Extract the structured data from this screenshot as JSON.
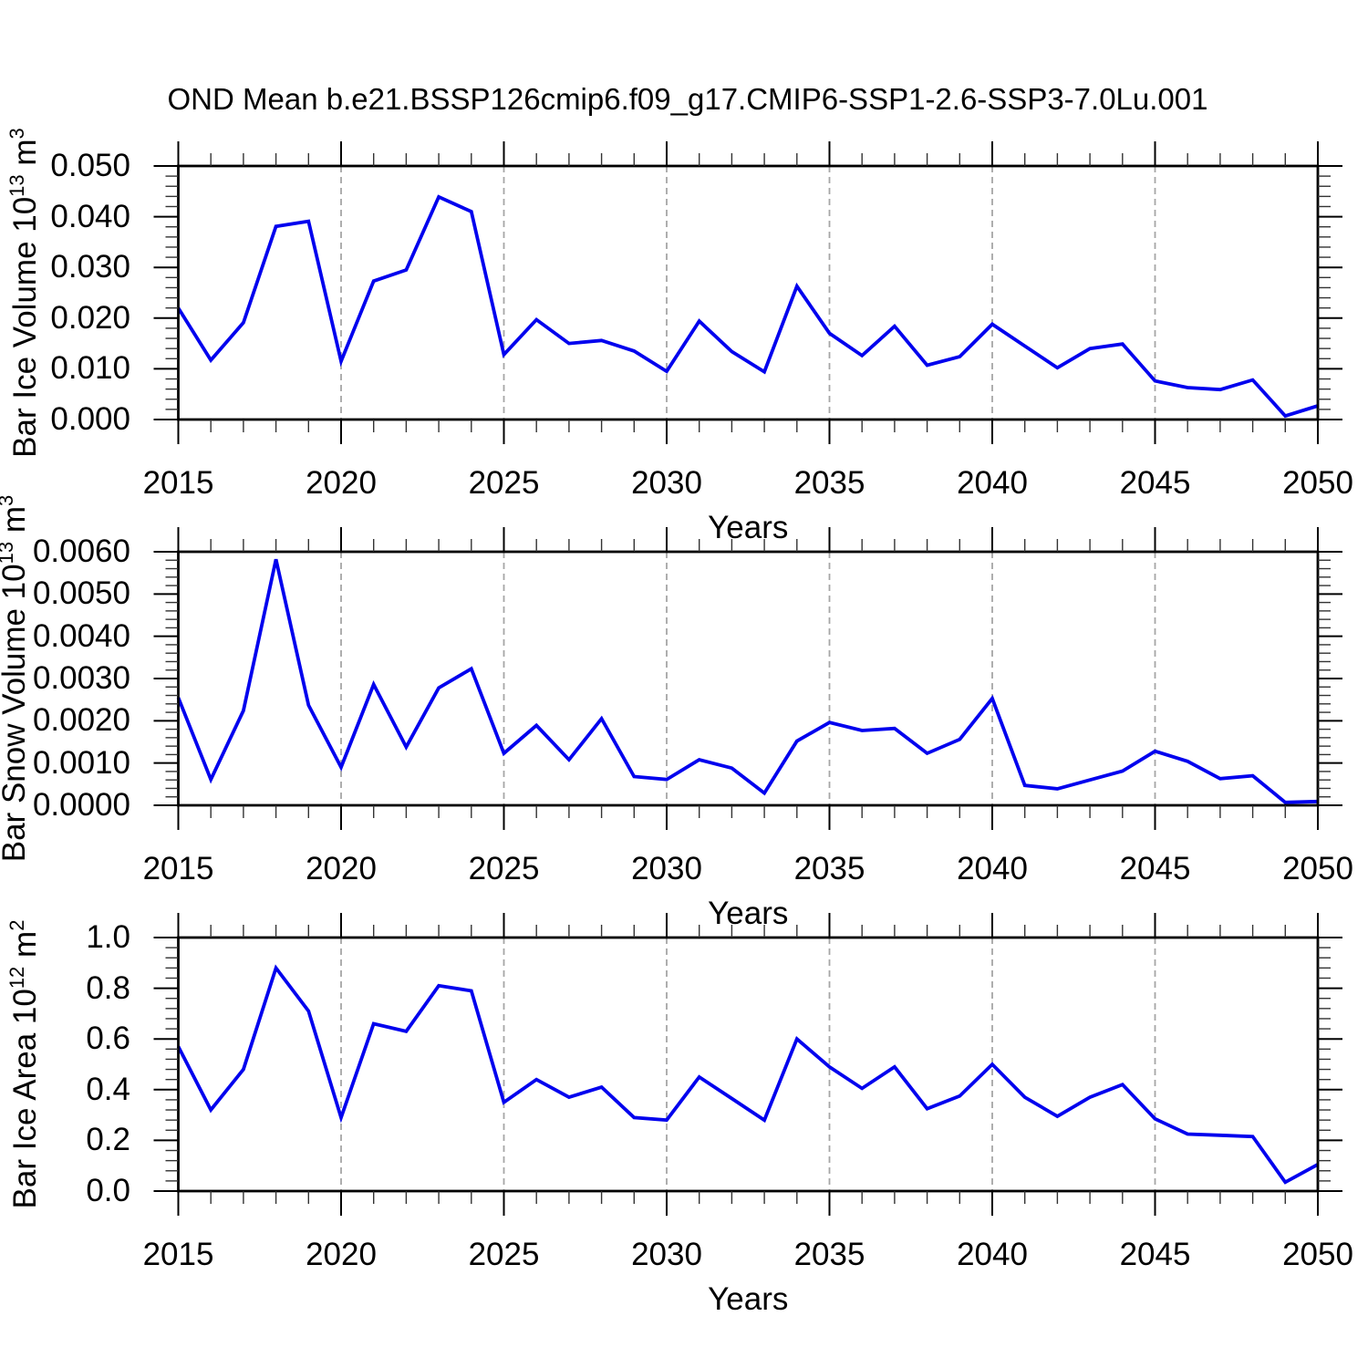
{
  "title": "OND Mean b.e21.BSSP126cmip6.f09_g17.CMIP6-SSP1-2.6-SSP3-7.0Lu.001",
  "colors": {
    "line": "#0000ee",
    "grid": "#a6a6a6",
    "frame": "#000000"
  },
  "x_axis": {
    "label": "Years",
    "tick_labels": [
      2015,
      2020,
      2025,
      2030,
      2035,
      2040,
      2045,
      2050
    ],
    "minor_step": 1,
    "range": [
      2015,
      2050
    ],
    "dashed_gridlines": [
      2020,
      2025,
      2030,
      2035,
      2040,
      2045
    ]
  },
  "chart_data": [
    {
      "type": "line",
      "ylabel": "Bar Ice Volume 10^13 m^3",
      "ylabel_parts": {
        "base": "Bar Ice Volume 10",
        "exp": "13",
        "unit": " m",
        "unit_exp": "3"
      },
      "ylim": [
        0,
        0.05
      ],
      "yticks": [
        0,
        0.01,
        0.02,
        0.03,
        0.04,
        0.05
      ],
      "ytick_labels": [
        "0.000",
        "0.010",
        "0.020",
        "0.030",
        "0.040",
        "0.050"
      ],
      "yminor_step": 0.002,
      "x": [
        2015,
        2016,
        2017,
        2018,
        2019,
        2020,
        2021,
        2022,
        2023,
        2024,
        2025,
        2026,
        2027,
        2028,
        2029,
        2030,
        2031,
        2032,
        2033,
        2034,
        2035,
        2036,
        2037,
        2038,
        2039,
        2040,
        2041,
        2042,
        2043,
        2044,
        2045,
        2046,
        2047,
        2048,
        2049,
        2050
      ],
      "values": [
        0.022,
        0.0117,
        0.0191,
        0.0381,
        0.0391,
        0.0115,
        0.0273,
        0.0295,
        0.0439,
        0.041,
        0.0128,
        0.0197,
        0.015,
        0.0156,
        0.0135,
        0.0095,
        0.0194,
        0.0134,
        0.0094,
        0.0263,
        0.017,
        0.0126,
        0.0184,
        0.0107,
        0.0124,
        0.0188,
        0.0145,
        0.0102,
        0.014,
        0.0149,
        0.0076,
        0.0063,
        0.0059,
        0.0078,
        0.0007,
        0.0027
      ]
    },
    {
      "type": "line",
      "ylabel": "Bar Snow Volume 10^13 m^3",
      "ylabel_parts": {
        "base": "Bar Snow Volume 10",
        "exp": "13",
        "unit": " m",
        "unit_exp": "3"
      },
      "ylim": [
        0,
        0.006
      ],
      "yticks": [
        0,
        0.001,
        0.002,
        0.003,
        0.004,
        0.005,
        0.006
      ],
      "ytick_labels": [
        "0.0000",
        "0.0010",
        "0.0020",
        "0.0030",
        "0.0040",
        "0.0050",
        "0.0060"
      ],
      "yminor_step": 0.0002,
      "x": [
        2015,
        2016,
        2017,
        2018,
        2019,
        2020,
        2021,
        2022,
        2023,
        2024,
        2025,
        2026,
        2027,
        2028,
        2029,
        2030,
        2031,
        2032,
        2033,
        2034,
        2035,
        2036,
        2037,
        2038,
        2039,
        2040,
        2041,
        2042,
        2043,
        2044,
        2045,
        2046,
        2047,
        2048,
        2049,
        2050
      ],
      "values": [
        0.00255,
        0.00061,
        0.00224,
        0.00582,
        0.00237,
        0.0009,
        0.00286,
        0.00138,
        0.00278,
        0.00323,
        0.00123,
        0.00189,
        0.00108,
        0.00205,
        0.00068,
        0.00061,
        0.00108,
        0.00088,
        0.00029,
        0.00152,
        0.00196,
        0.00177,
        0.00182,
        0.00123,
        0.00156,
        0.00253,
        0.00047,
        0.00039,
        0.0006,
        0.00081,
        0.00128,
        0.00104,
        0.00063,
        0.0007,
        7e-05,
        9e-05
      ]
    },
    {
      "type": "line",
      "ylabel": "Bar Ice Area 10^12 m^2",
      "ylabel_parts": {
        "base": "Bar Ice Area 10",
        "exp": "12",
        "unit": " m",
        "unit_exp": "2"
      },
      "ylim": [
        0,
        1.0
      ],
      "yticks": [
        0,
        0.2,
        0.4,
        0.6,
        0.8,
        1.0
      ],
      "ytick_labels": [
        "0.0",
        "0.2",
        "0.4",
        "0.6",
        "0.8",
        "1.0"
      ],
      "yminor_step": 0.04,
      "x": [
        2015,
        2016,
        2017,
        2018,
        2019,
        2020,
        2021,
        2022,
        2023,
        2024,
        2025,
        2026,
        2027,
        2028,
        2029,
        2030,
        2031,
        2032,
        2033,
        2034,
        2035,
        2036,
        2037,
        2038,
        2039,
        2040,
        2041,
        2042,
        2043,
        2044,
        2045,
        2046,
        2047,
        2048,
        2049,
        2050
      ],
      "values": [
        0.57,
        0.32,
        0.48,
        0.88,
        0.71,
        0.29,
        0.66,
        0.63,
        0.81,
        0.79,
        0.35,
        0.44,
        0.37,
        0.41,
        0.29,
        0.28,
        0.45,
        0.365,
        0.28,
        0.6,
        0.49,
        0.405,
        0.49,
        0.325,
        0.375,
        0.5,
        0.37,
        0.295,
        0.37,
        0.42,
        0.285,
        0.225,
        0.22,
        0.215,
        0.035,
        0.105
      ]
    }
  ]
}
